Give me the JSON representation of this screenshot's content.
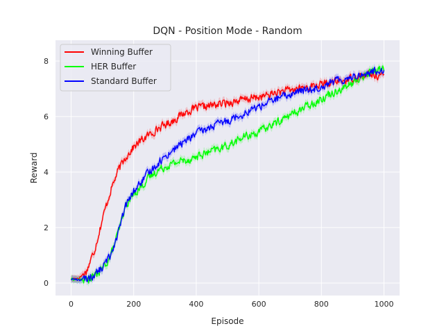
{
  "chart_data": {
    "type": "line",
    "title": "DQN - Position Mode - Random",
    "xlabel": "Episode",
    "ylabel": "Reward",
    "xlim": [
      -50,
      1050
    ],
    "ylim": [
      -0.45,
      8.75
    ],
    "xticks": [
      0,
      200,
      400,
      600,
      800,
      1000
    ],
    "yticks": [
      0,
      2,
      4,
      6,
      8
    ],
    "grid": true,
    "legend_position": "top-left",
    "series": [
      {
        "name": "Winning Buffer",
        "color": "#ff0000",
        "x": [
          0,
          25,
          50,
          75,
          100,
          125,
          150,
          175,
          200,
          225,
          250,
          275,
          300,
          325,
          350,
          375,
          400,
          425,
          450,
          475,
          500,
          525,
          550,
          575,
          600,
          625,
          650,
          675,
          700,
          725,
          750,
          775,
          800,
          825,
          850,
          875,
          900,
          925,
          950,
          975,
          1000
        ],
        "y": [
          0.15,
          0.18,
          0.45,
          1.2,
          2.3,
          3.3,
          4.05,
          4.55,
          4.9,
          5.15,
          5.35,
          5.55,
          5.7,
          5.85,
          6.05,
          6.2,
          6.3,
          6.35,
          6.4,
          6.45,
          6.5,
          6.55,
          6.6,
          6.65,
          6.7,
          6.75,
          6.85,
          6.9,
          6.95,
          7.0,
          7.05,
          7.1,
          7.15,
          7.2,
          7.25,
          7.3,
          7.4,
          7.45,
          7.5,
          7.5,
          7.45
        ]
      },
      {
        "name": "HER Buffer",
        "color": "#00ff00",
        "x": [
          0,
          25,
          50,
          75,
          100,
          125,
          150,
          175,
          200,
          225,
          250,
          275,
          300,
          325,
          350,
          375,
          400,
          425,
          450,
          475,
          500,
          525,
          550,
          575,
          600,
          625,
          650,
          675,
          700,
          725,
          750,
          775,
          800,
          825,
          850,
          875,
          900,
          925,
          950,
          975,
          1000
        ],
        "y": [
          0.15,
          0.12,
          0.12,
          0.25,
          0.5,
          0.95,
          1.8,
          2.8,
          3.2,
          3.5,
          3.8,
          4.05,
          4.2,
          4.3,
          4.4,
          4.45,
          4.55,
          4.65,
          4.75,
          4.85,
          4.95,
          5.1,
          5.25,
          5.35,
          5.45,
          5.6,
          5.75,
          5.9,
          6.05,
          6.2,
          6.35,
          6.5,
          6.65,
          6.8,
          6.95,
          7.05,
          7.2,
          7.4,
          7.55,
          7.7,
          7.75
        ]
      },
      {
        "name": "Standard Buffer",
        "color": "#0000ff",
        "x": [
          0,
          25,
          50,
          75,
          100,
          125,
          150,
          175,
          200,
          225,
          250,
          275,
          300,
          325,
          350,
          375,
          400,
          425,
          450,
          475,
          500,
          525,
          550,
          575,
          600,
          625,
          650,
          675,
          700,
          725,
          750,
          775,
          800,
          825,
          850,
          875,
          900,
          925,
          950,
          975,
          1000
        ],
        "y": [
          0.15,
          0.12,
          0.15,
          0.3,
          0.55,
          1.0,
          1.8,
          2.8,
          3.3,
          3.65,
          4.0,
          4.3,
          4.55,
          4.8,
          5.0,
          5.2,
          5.4,
          5.5,
          5.65,
          5.75,
          5.85,
          6.0,
          6.1,
          6.25,
          6.35,
          6.5,
          6.6,
          6.7,
          6.8,
          6.9,
          6.95,
          7.0,
          7.1,
          7.2,
          7.3,
          7.35,
          7.45,
          7.5,
          7.55,
          7.65,
          7.7
        ]
      }
    ]
  }
}
